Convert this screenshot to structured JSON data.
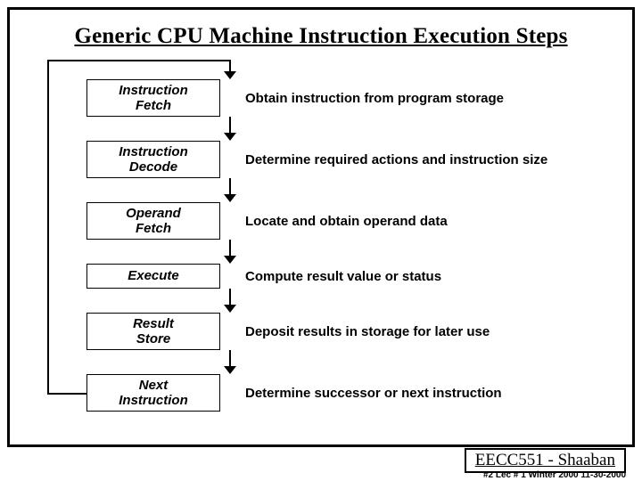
{
  "title": "Generic CPU Machine Instruction Execution Steps",
  "steps": [
    {
      "label": "Instruction\nFetch",
      "desc": "Obtain instruction from program storage",
      "lines": 2
    },
    {
      "label": "Instruction\nDecode",
      "desc": "Determine required actions and instruction size",
      "lines": 2
    },
    {
      "label": "Operand\nFetch",
      "desc": "Locate and obtain operand data",
      "lines": 2
    },
    {
      "label": "Execute",
      "desc": "Compute result value or status",
      "lines": 1
    },
    {
      "label": "Result\nStore",
      "desc": "Deposit results in storage for later use",
      "lines": 2
    },
    {
      "label": "Next\nInstruction",
      "desc": "Determine successor or next instruction",
      "lines": 2
    }
  ],
  "layout": {
    "row_gap": 27,
    "box_h_single": 28,
    "box_h_double": 42
  },
  "colors": {
    "border": "#000000",
    "background": "#ffffff",
    "text": "#000000"
  },
  "footer": {
    "course": "EECC551 - Shaaban",
    "meta": "#2   Lec # 1  Winter 2000   11-30-2000"
  }
}
